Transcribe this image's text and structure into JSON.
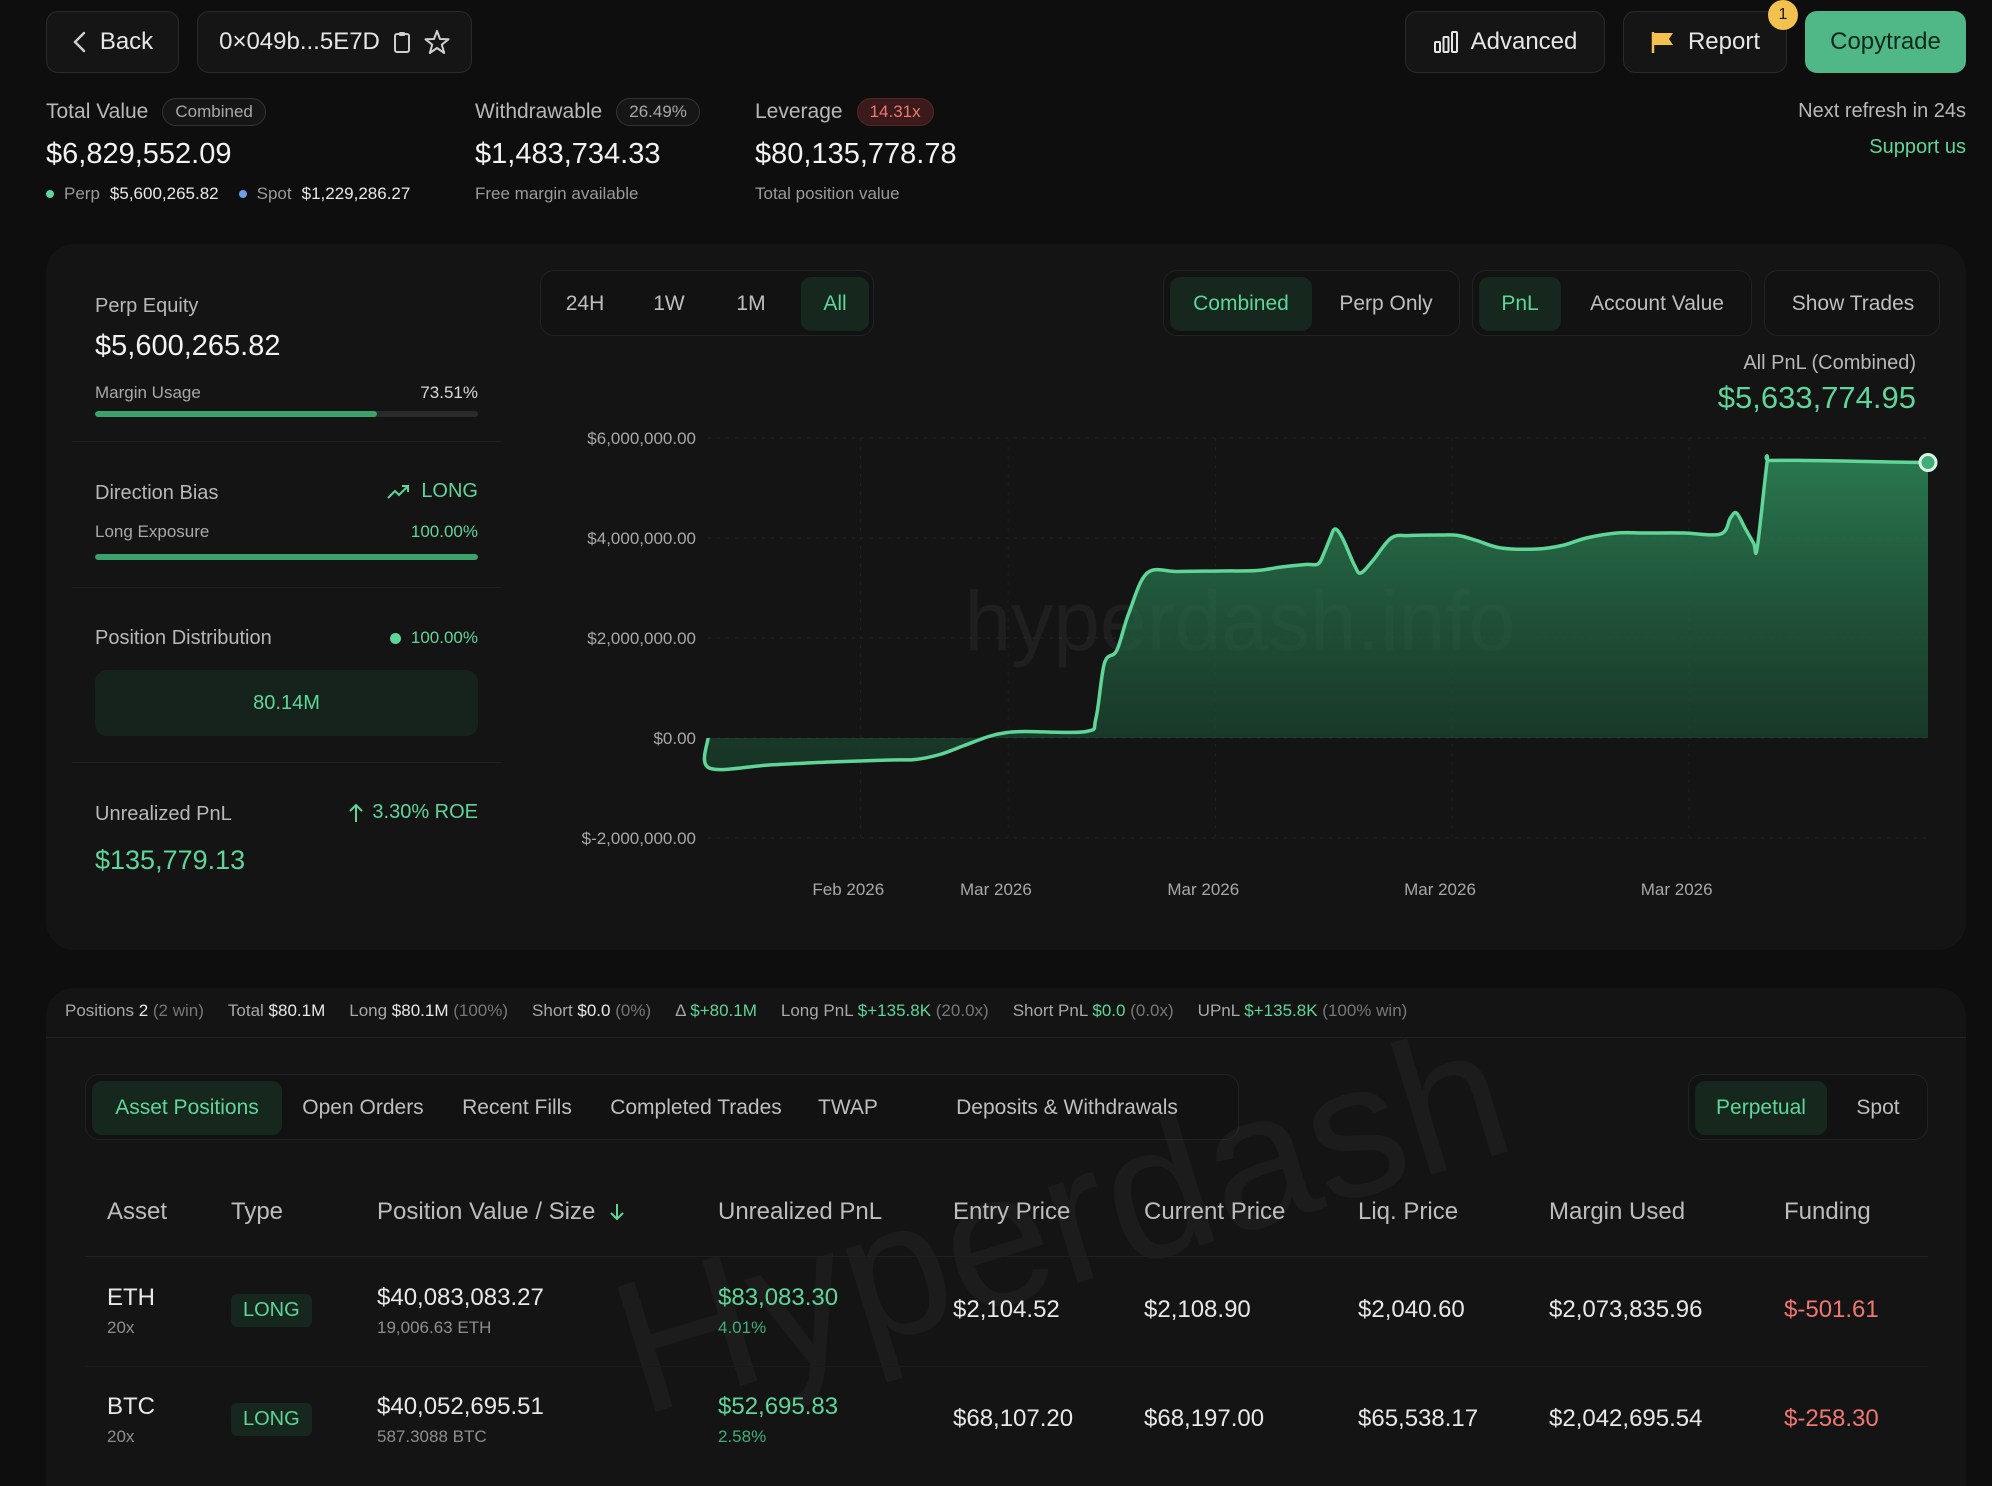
{
  "header": {
    "back_label": "Back",
    "address": "0×049b...5E7D",
    "advanced_label": "Advanced",
    "report_label": "Report",
    "report_badge": "1",
    "copytrade_label": "Copytrade",
    "next_refresh": "Next refresh in 24s",
    "support": "Support us"
  },
  "summary": {
    "total_value_label": "Total Value",
    "total_value_pill": "Combined",
    "total_value": "$6,829,552.09",
    "perp_label": "Perp",
    "perp_value": "$5,600,265.82",
    "spot_label": "Spot",
    "spot_value": "$1,229,286.27",
    "withdrawable_label": "Withdrawable",
    "withdrawable_pill": "26.49%",
    "withdrawable_value": "$1,483,734.33",
    "withdrawable_sub": "Free margin available",
    "leverage_label": "Leverage",
    "leverage_pill": "14.31x",
    "leverage_value": "$80,135,778.78",
    "leverage_sub": "Total position value"
  },
  "left_panel": {
    "perp_equity_label": "Perp Equity",
    "perp_equity_value": "$5,600,265.82",
    "margin_usage_label": "Margin Usage",
    "margin_usage_value": "73.51%",
    "margin_usage_fraction": 0.7351,
    "direction_bias_label": "Direction Bias",
    "direction_bias_value": "LONG",
    "long_exposure_label": "Long Exposure",
    "long_exposure_value": "100.00%",
    "long_exposure_fraction": 1.0,
    "position_distribution_label": "Position Distribution",
    "position_distribution_value": "100.00%",
    "position_distribution_box": "80.14M",
    "unrealized_pnl_label": "Unrealized PnL",
    "roe_value": "3.30% ROE",
    "unrealized_pnl_value": "$135,779.13"
  },
  "chart_controls": {
    "ranges": [
      "24H",
      "1W",
      "1M",
      "All"
    ],
    "active_range": "All",
    "scope": [
      "Combined",
      "Perp Only"
    ],
    "active_scope": "Combined",
    "metric": [
      "PnL",
      "Account Value"
    ],
    "active_metric": "PnL",
    "show_trades": "Show Trades",
    "readout_label": "All PnL (Combined)",
    "readout_value": "$5,633,774.95",
    "watermark": "hyperdash.info"
  },
  "chart_data": {
    "type": "area",
    "ylim": [
      -2000000,
      6000000
    ],
    "y_ticks": [
      6000000,
      4000000,
      2000000,
      0,
      -2000000
    ],
    "y_tick_labels": [
      "$6,000,000.00",
      "$4,000,000.00",
      "$2,000,000.00",
      "$0.00",
      "$-2,000,000.00"
    ],
    "x_tick_labels": [
      {
        "label": "Feb 2026",
        "t": 0.115
      },
      {
        "label": "Mar 2026",
        "t": 0.236
      },
      {
        "label": "Mar 2026",
        "t": 0.406
      },
      {
        "label": "Mar 2026",
        "t": 0.6
      },
      {
        "label": "Mar 2026",
        "t": 0.794
      }
    ],
    "grid": true,
    "color": "#5fd598",
    "points": [
      [
        0,
        0
      ],
      [
        0.001,
        -600000
      ],
      [
        0.05,
        -540000
      ],
      [
        0.1,
        -480000
      ],
      [
        0.15,
        -440000
      ],
      [
        0.17,
        -430000
      ],
      [
        0.19,
        -330000
      ],
      [
        0.21,
        -150000
      ],
      [
        0.23,
        30000
      ],
      [
        0.245,
        110000
      ],
      [
        0.26,
        130000
      ],
      [
        0.31,
        130000
      ],
      [
        0.318,
        400000
      ],
      [
        0.325,
        1500000
      ],
      [
        0.335,
        1750000
      ],
      [
        0.345,
        2500000
      ],
      [
        0.36,
        3300000
      ],
      [
        0.385,
        3330000
      ],
      [
        0.42,
        3340000
      ],
      [
        0.45,
        3350000
      ],
      [
        0.47,
        3420000
      ],
      [
        0.49,
        3470000
      ],
      [
        0.5,
        3480000
      ],
      [
        0.505,
        3700000
      ],
      [
        0.51,
        4000000
      ],
      [
        0.514,
        4180000
      ],
      [
        0.52,
        4000000
      ],
      [
        0.53,
        3450000
      ],
      [
        0.535,
        3300000
      ],
      [
        0.545,
        3550000
      ],
      [
        0.56,
        4000000
      ],
      [
        0.575,
        4050000
      ],
      [
        0.6,
        4060000
      ],
      [
        0.615,
        4050000
      ],
      [
        0.63,
        3950000
      ],
      [
        0.65,
        3800000
      ],
      [
        0.68,
        3780000
      ],
      [
        0.7,
        3850000
      ],
      [
        0.72,
        4000000
      ],
      [
        0.745,
        4100000
      ],
      [
        0.77,
        4100000
      ],
      [
        0.8,
        4100000
      ],
      [
        0.83,
        4080000
      ],
      [
        0.838,
        4400000
      ],
      [
        0.843,
        4500000
      ],
      [
        0.85,
        4200000
      ],
      [
        0.857,
        3900000
      ],
      [
        0.86,
        3800000
      ],
      [
        0.868,
        5500000
      ],
      [
        0.87,
        5550000
      ],
      [
        0.9,
        5550000
      ],
      [
        0.93,
        5540000
      ],
      [
        0.97,
        5520000
      ],
      [
        1.0,
        5510000
      ]
    ]
  },
  "positions_stats": [
    {
      "label": "Positions",
      "value": "2",
      "extra": "(2 win)",
      "vcolor": "plain"
    },
    {
      "label": "Total",
      "value": "$80.1M",
      "extra": "",
      "vcolor": "plain"
    },
    {
      "label": "Long",
      "value": "$80.1M",
      "extra": "(100%)",
      "vcolor": "plain"
    },
    {
      "label": "Short",
      "value": "$0.0",
      "extra": "(0%)",
      "vcolor": "plain"
    },
    {
      "label": "Δ",
      "value": "$+80.1M",
      "extra": "",
      "vcolor": "green"
    },
    {
      "label": "Long PnL",
      "value": "$+135.8K",
      "extra": "(20.0x)",
      "vcolor": "green"
    },
    {
      "label": "Short PnL",
      "value": "$0.0",
      "extra": "(0.0x)",
      "vcolor": "green"
    },
    {
      "label": "UPnL",
      "value": "$+135.8K",
      "extra": "(100% win)",
      "vcolor": "green"
    }
  ],
  "tabs": [
    "Asset Positions",
    "Open Orders",
    "Recent Fills",
    "Completed Trades",
    "TWAP",
    "Deposits & Withdrawals"
  ],
  "active_tab": "Asset Positions",
  "market_toggle": [
    "Perpetual",
    "Spot"
  ],
  "active_market": "Perpetual",
  "table": {
    "headers": [
      "Asset",
      "Type",
      "Position Value / Size",
      "Unrealized PnL",
      "Entry Price",
      "Current Price",
      "Liq. Price",
      "Margin Used",
      "Funding"
    ],
    "watermark": "Hyperdash",
    "rows": [
      {
        "asset": "ETH",
        "leverage": "20x",
        "type": "LONG",
        "value": "$40,083,083.27",
        "size": "19,006.63 ETH",
        "upnl": "$83,083.30",
        "upnl_pct": "4.01%",
        "entry": "$2,104.52",
        "current": "$2,108.90",
        "liq": "$2,040.60",
        "margin": "$2,073,835.96",
        "funding": "$-501.61"
      },
      {
        "asset": "BTC",
        "leverage": "20x",
        "type": "LONG",
        "value": "$40,052,695.51",
        "size": "587.3088 BTC",
        "upnl": "$52,695.83",
        "upnl_pct": "2.58%",
        "entry": "$68,107.20",
        "current": "$68,197.00",
        "liq": "$65,538.17",
        "margin": "$2,042,695.54",
        "funding": "$-258.30"
      }
    ]
  }
}
